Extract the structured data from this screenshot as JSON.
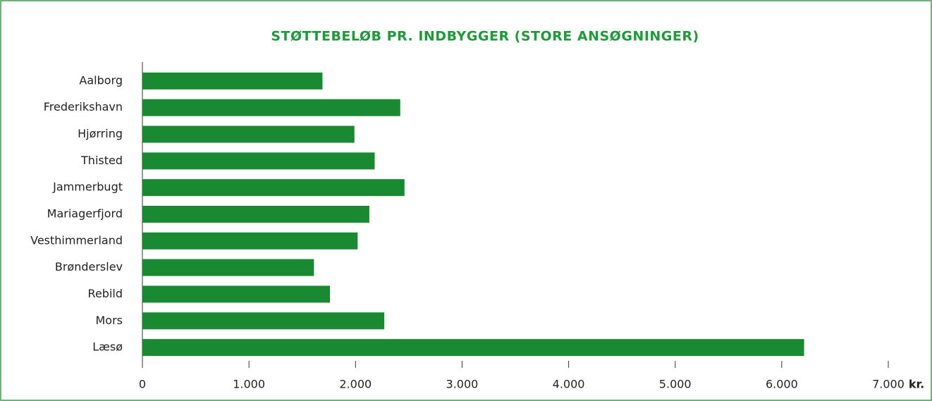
{
  "chart_data": {
    "type": "barh",
    "title": "STØTTEBELØB PR. INDBYGGER (STORE ANSØGNINGER)",
    "x_label": "kr.",
    "categories": [
      "Aalborg",
      "Frederikshavn",
      "Hjørring",
      "Thisted",
      "Jammerbugt",
      "Mariagerfjord",
      "Vesthimmerland",
      "Brønderslev",
      "Rebild",
      "Mors",
      "Læsø"
    ],
    "values": [
      1690,
      2420,
      1990,
      2180,
      2460,
      2130,
      2020,
      1610,
      1760,
      2270,
      6210
    ],
    "color": "#1a8a32",
    "xlim": [
      0,
      7000
    ],
    "xticks": [
      0,
      {
        "value": 1000,
        "label": "1.000"
      },
      {
        "value": 2000,
        "label": "2.000"
      },
      {
        "value": 3000,
        "label": "3.000"
      },
      {
        "value": 4000,
        "label": "4.000"
      },
      {
        "value": 5000,
        "label": "5.000"
      },
      {
        "value": 6000,
        "label": "6.000"
      },
      {
        "value": 7000,
        "label": "7.000"
      }
    ],
    "grid": false
  }
}
